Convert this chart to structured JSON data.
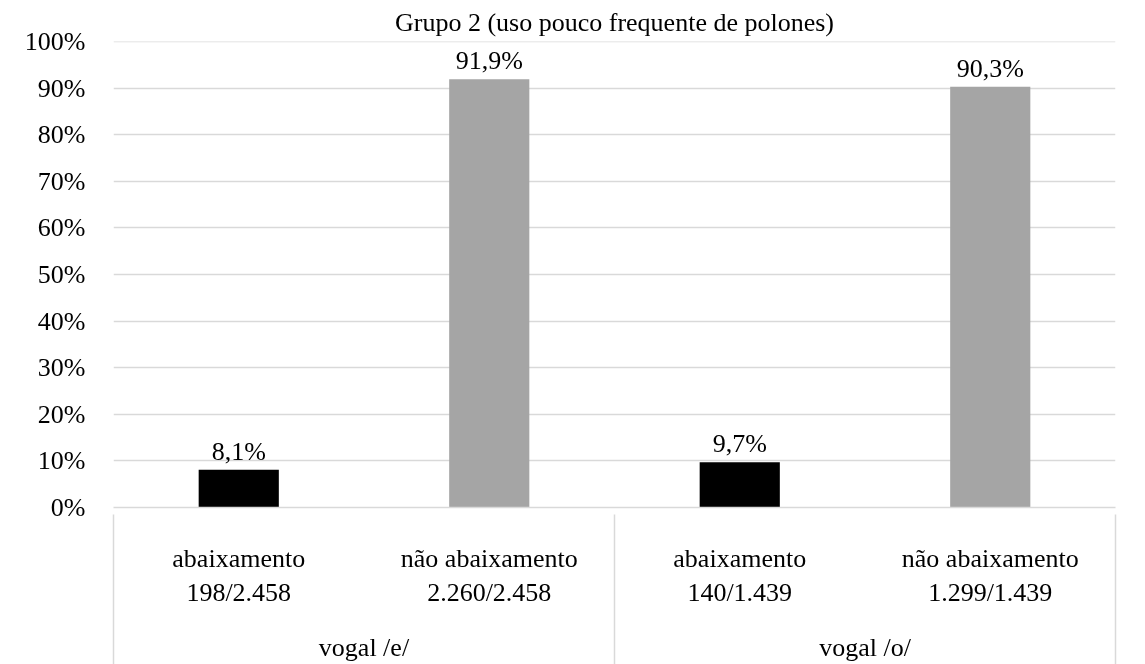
{
  "chart_data": {
    "type": "bar",
    "title": "Grupo 2 (uso pouco frequente de polones)",
    "categories": [
      "abaixamento\n198/2.458",
      "não abaixamento\n2.260/2.458",
      "abaixamento\n140/1.439",
      "não abaixamento\n1.299/1.439"
    ],
    "values": [
      8.1,
      91.9,
      9.7,
      90.3
    ],
    "colors": [
      "#000000",
      "#a5a5a5",
      "#000000",
      "#a5a5a5"
    ],
    "value_labels": [
      "8,1%",
      "91,9%",
      "9,7%",
      "90,3%"
    ],
    "ylim": [
      0,
      100
    ],
    "yticks": [
      {
        "value": 0,
        "label": "0%"
      },
      {
        "value": 10,
        "label": "10%"
      },
      {
        "value": 20,
        "label": "20%"
      },
      {
        "value": 30,
        "label": "30%"
      },
      {
        "value": 40,
        "label": "40%"
      },
      {
        "value": 50,
        "label": "50%"
      },
      {
        "value": 60,
        "label": "60%"
      },
      {
        "value": 70,
        "label": "70%"
      },
      {
        "value": 80,
        "label": "80%"
      },
      {
        "value": 90,
        "label": "90%"
      },
      {
        "value": 100,
        "label": "100%"
      }
    ],
    "grid": "y",
    "annotations": [
      "vogal /e/",
      "vogal /o/"
    ]
  }
}
